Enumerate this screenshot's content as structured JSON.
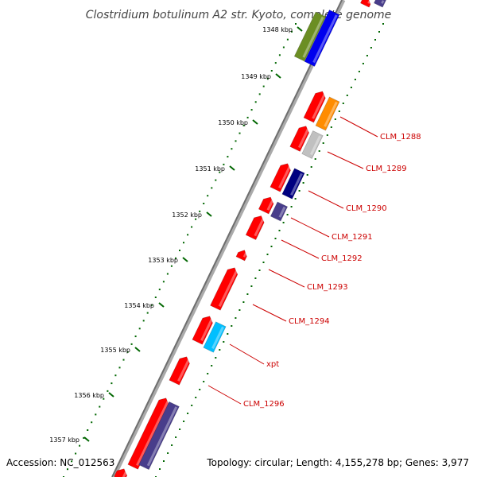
{
  "title": "Clostridium botulinum A2 str. Kyoto, complete genome",
  "accession": "Accession: NC_012563",
  "topology": "Topology: circular; Length: 4,155,278 bp; Genes: 3,977",
  "kbp_ticks": [
    "1348 kbp",
    "1349 kbp",
    "1350 kbp",
    "1351 kbp",
    "1352 kbp",
    "1353 kbp",
    "1354 kbp",
    "1355 kbp",
    "1356 kbp",
    "1357 kbp"
  ],
  "gene_labels": [
    "CLM_1288",
    "CLM_1289",
    "CLM_1290",
    "CLM_1291",
    "CLM_1292",
    "CLM_1293",
    "CLM_1294",
    "xpt",
    "CLM_1296"
  ],
  "colors": {
    "forward_gene": "#ff0000",
    "reverse_gene": "#ff0000",
    "backbone": "#808080",
    "tick_dots": "#006600",
    "label_text": "#cc0000",
    "cog_olive": "#6b8e23",
    "cog_blue": "#0000ee",
    "cog_orange": "#ff8c00",
    "cog_grey": "#c0c0c0",
    "cog_navy": "#000080",
    "cog_slate": "#483d8b",
    "cog_cyan": "#00bfff"
  }
}
